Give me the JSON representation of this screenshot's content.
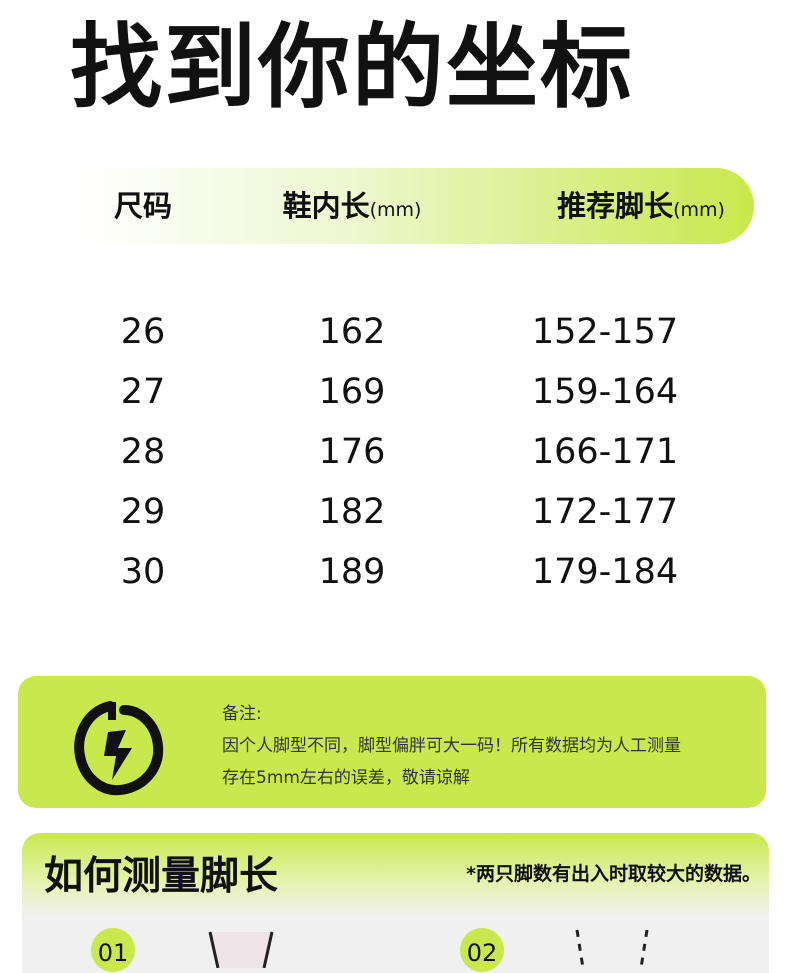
{
  "title": "找到你的坐标",
  "table": {
    "headers": [
      {
        "label": "尺码",
        "unit": ""
      },
      {
        "label": "鞋内长",
        "unit": "(mm)"
      },
      {
        "label": "推荐脚长",
        "unit": "(mm)"
      }
    ],
    "rows": [
      [
        "26",
        "162",
        "152-157"
      ],
      [
        "27",
        "169",
        "159-164"
      ],
      [
        "28",
        "176",
        "166-171"
      ],
      [
        "29",
        "182",
        "172-177"
      ],
      [
        "30",
        "189",
        "179-184"
      ]
    ]
  },
  "note": {
    "icon": "lightning-circle-icon",
    "label": "备注:",
    "line1": "因个人脚型不同，脚型偏胖可大一码！所有数据均为人工测量",
    "line2": "存在5mm左右的误差，敬请谅解"
  },
  "measure": {
    "title": "如何测量脚长",
    "hint": "*两只脚数有出入时取较大的数据。",
    "steps": [
      "01",
      "02"
    ]
  },
  "colors": {
    "accent": "#c8e84d"
  }
}
